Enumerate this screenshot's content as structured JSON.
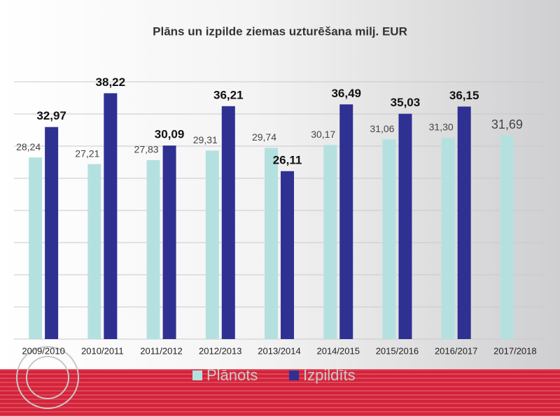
{
  "chart_data": {
    "type": "bar",
    "title": "Plāns un izpilde ziemas uzturēšana milj. EUR",
    "categories": [
      "2009/2010",
      "2010/2011",
      "2011/2012",
      "2012/2013",
      "2013/2014",
      "2014/2015",
      "2015/2016",
      "2016/2017",
      "2017/2018"
    ],
    "series": [
      {
        "name": "Plānots",
        "color": "#b4e1e0",
        "values": [
          28.24,
          27.21,
          27.83,
          29.31,
          29.74,
          30.17,
          31.06,
          31.3,
          31.69
        ],
        "value_labels": [
          "28,24",
          "27,21",
          "27,83",
          "29,31",
          "29,74",
          "30,17",
          "31,06",
          "31,30",
          "31,69"
        ]
      },
      {
        "name": "Izpildīts",
        "color": "#2e3192",
        "values": [
          32.97,
          38.22,
          30.09,
          36.21,
          26.11,
          36.49,
          35.03,
          36.15,
          null
        ],
        "value_labels": [
          "32,97",
          "38,22",
          "30,09",
          "36,21",
          "26,11",
          "36,49",
          "35,03",
          "36,15",
          null
        ]
      }
    ],
    "ylim": [
      0,
      40
    ],
    "yticks": [
      0,
      5,
      10,
      15,
      20,
      25,
      30,
      35,
      40
    ],
    "grid": true,
    "legend": "bottom"
  }
}
